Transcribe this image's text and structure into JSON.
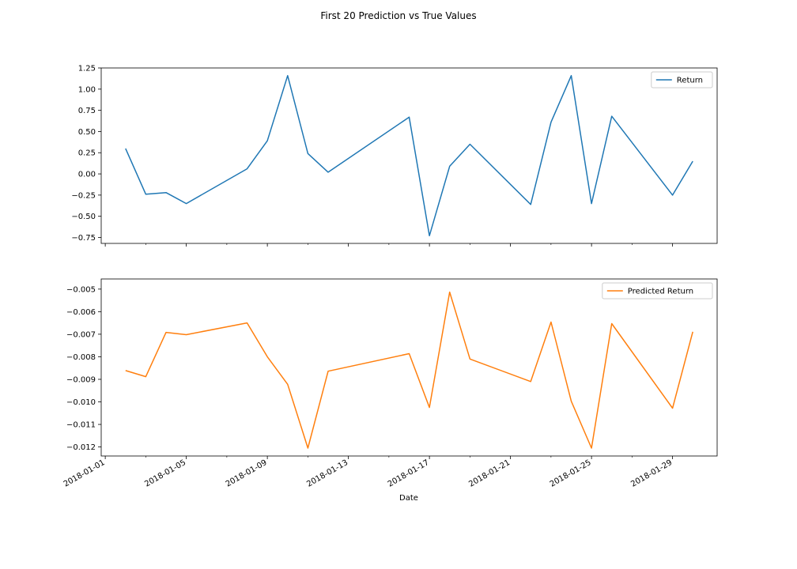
{
  "figure": {
    "title": "First 20 Prediction vs True Values",
    "xlabel": "Date"
  },
  "chart_data": [
    {
      "type": "line",
      "x": [
        "2018-01-02",
        "2018-01-03",
        "2018-01-04",
        "2018-01-05",
        "2018-01-08",
        "2018-01-09",
        "2018-01-10",
        "2018-01-11",
        "2018-01-12",
        "2018-01-16",
        "2018-01-17",
        "2018-01-18",
        "2018-01-19",
        "2018-01-22",
        "2018-01-23",
        "2018-01-24",
        "2018-01-25",
        "2018-01-26",
        "2018-01-29",
        "2018-01-30"
      ],
      "series": [
        {
          "name": "Return",
          "color": "#1f77b4",
          "values": [
            0.3,
            -0.24,
            -0.22,
            -0.35,
            0.06,
            0.39,
            1.16,
            0.24,
            0.02,
            0.67,
            -0.73,
            0.09,
            0.35,
            -0.36,
            0.61,
            1.16,
            -0.35,
            0.68,
            -0.25,
            0.15
          ]
        }
      ],
      "xlim": [
        "2018-01-01",
        "2018-01-31"
      ],
      "ylim": [
        -0.82,
        1.25
      ],
      "yticks": [
        1.25,
        1.0,
        0.75,
        0.5,
        0.25,
        0.0,
        -0.25,
        -0.5,
        -0.75
      ],
      "ytick_labels": [
        "1.25",
        "1.00",
        "0.75",
        "0.50",
        "0.25",
        "0.00",
        "−0.25",
        "−0.50",
        "−0.75"
      ],
      "legend": "top-right",
      "grid": false
    },
    {
      "type": "line",
      "x": [
        "2018-01-02",
        "2018-01-03",
        "2018-01-04",
        "2018-01-05",
        "2018-01-08",
        "2018-01-09",
        "2018-01-10",
        "2018-01-11",
        "2018-01-12",
        "2018-01-16",
        "2018-01-17",
        "2018-01-18",
        "2018-01-19",
        "2018-01-22",
        "2018-01-23",
        "2018-01-24",
        "2018-01-25",
        "2018-01-26",
        "2018-01-29",
        "2018-01-30"
      ],
      "series": [
        {
          "name": "Predicted Return",
          "color": "#ff7f0e",
          "values": [
            -0.00861,
            -0.00888,
            -0.00692,
            -0.00702,
            -0.0065,
            -0.008,
            -0.00922,
            -0.01205,
            -0.00864,
            -0.00786,
            -0.01025,
            -0.00513,
            -0.0081,
            -0.0091,
            -0.00646,
            -0.00997,
            -0.01205,
            -0.00653,
            -0.01028,
            -0.00689
          ]
        }
      ],
      "xlim": [
        "2018-01-01",
        "2018-01-31"
      ],
      "ylim": [
        -0.0124,
        -0.00455
      ],
      "yticks": [
        -0.005,
        -0.006,
        -0.007,
        -0.008,
        -0.009,
        -0.01,
        -0.011,
        -0.012
      ],
      "ytick_labels": [
        "−0.005",
        "−0.006",
        "−0.007",
        "−0.008",
        "−0.009",
        "−0.010",
        "−0.011",
        "−0.012"
      ],
      "xticks": [
        "2018-01-01",
        "2018-01-05",
        "2018-01-09",
        "2018-01-13",
        "2018-01-17",
        "2018-01-21",
        "2018-01-25",
        "2018-01-29"
      ],
      "xtick_labels": [
        "2018-01-01",
        "2018-01-05",
        "2018-01-09",
        "2018-01-13",
        "2018-01-17",
        "2018-01-21",
        "2018-01-25",
        "2018-01-29"
      ],
      "legend": "top-right",
      "grid": false
    }
  ]
}
